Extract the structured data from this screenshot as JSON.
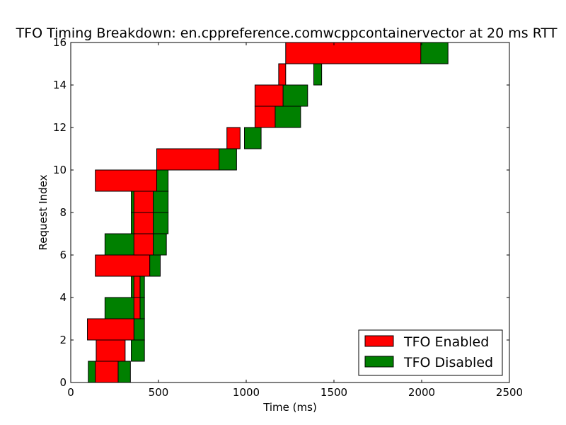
{
  "chart_data": {
    "type": "bar",
    "orientation": "horizontal-range",
    "title": "TFO Timing Breakdown: en.cppreference.comwcppcontainervector at 20 ms RTT",
    "xlabel": "Time (ms)",
    "ylabel": "Request Index",
    "xlim": [
      0,
      2500
    ],
    "ylim": [
      0,
      16
    ],
    "xticks": [
      "0",
      "500",
      "1000",
      "1500",
      "2000",
      "2500"
    ],
    "yticks": [
      "0",
      "2",
      "4",
      "6",
      "8",
      "10",
      "12",
      "14",
      "16"
    ],
    "legend_position": "bottom-right",
    "series": [
      {
        "name": "TFO Disabled",
        "color": "#008000",
        "bars": [
          {
            "index": 0,
            "start": 100,
            "end": 340
          },
          {
            "index": 1,
            "start": 345,
            "end": 420
          },
          {
            "index": 2,
            "start": 360,
            "end": 420
          },
          {
            "index": 3,
            "start": 195,
            "end": 420
          },
          {
            "index": 4,
            "start": 345,
            "end": 420
          },
          {
            "index": 5,
            "start": 450,
            "end": 510
          },
          {
            "index": 6,
            "start": 195,
            "end": 545
          },
          {
            "index": 7,
            "start": 345,
            "end": 555
          },
          {
            "index": 8,
            "start": 345,
            "end": 555
          },
          {
            "index": 9,
            "start": 345,
            "end": 555
          },
          {
            "index": 10,
            "start": 840,
            "end": 945
          },
          {
            "index": 11,
            "start": 990,
            "end": 1085
          },
          {
            "index": 12,
            "start": 1160,
            "end": 1310
          },
          {
            "index": 13,
            "start": 1205,
            "end": 1350
          },
          {
            "index": 14,
            "start": 1385,
            "end": 1430
          },
          {
            "index": 15,
            "start": 1990,
            "end": 2150
          }
        ]
      },
      {
        "name": "TFO Enabled",
        "color": "#ff0000",
        "bars": [
          {
            "index": 0,
            "start": 140,
            "end": 270
          },
          {
            "index": 1,
            "start": 145,
            "end": 310
          },
          {
            "index": 2,
            "start": 95,
            "end": 360
          },
          {
            "index": 3,
            "start": 360,
            "end": 395
          },
          {
            "index": 4,
            "start": 360,
            "end": 395
          },
          {
            "index": 5,
            "start": 140,
            "end": 450
          },
          {
            "index": 6,
            "start": 360,
            "end": 470
          },
          {
            "index": 7,
            "start": 360,
            "end": 470
          },
          {
            "index": 8,
            "start": 360,
            "end": 470
          },
          {
            "index": 9,
            "start": 140,
            "end": 490
          },
          {
            "index": 10,
            "start": 490,
            "end": 845
          },
          {
            "index": 11,
            "start": 890,
            "end": 965
          },
          {
            "index": 12,
            "start": 1050,
            "end": 1165
          },
          {
            "index": 13,
            "start": 1050,
            "end": 1210
          },
          {
            "index": 14,
            "start": 1185,
            "end": 1225
          },
          {
            "index": 15,
            "start": 1225,
            "end": 1995
          }
        ]
      }
    ],
    "legend": [
      {
        "label": "TFO Enabled",
        "color": "#ff0000"
      },
      {
        "label": "TFO Disabled",
        "color": "#008000"
      }
    ]
  }
}
